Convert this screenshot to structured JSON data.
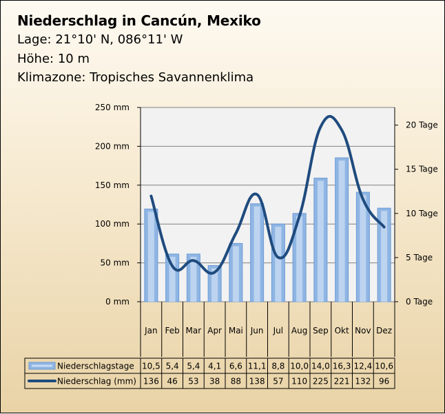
{
  "header": {
    "title": "Niederschlag in Cancún, Mexiko",
    "lage": "Lage: 21°10' N, 086°11' W",
    "hoehe": "Höhe: 10 m",
    "klimazone": "Klimazone: Tropisches Savannenklima"
  },
  "colors": {
    "bar_fill": "#8fb5e3",
    "bar_stroke": "#6d9bd6",
    "bar_highlight": "#c8dcf3",
    "line": "#1f4b7e",
    "plot_bg": "#f2f2f2",
    "gridline": "#808080"
  },
  "chart_data": {
    "type": "bar",
    "categories": [
      "Jan",
      "Feb",
      "Mar",
      "Apr",
      "Mai",
      "Jun",
      "Jul",
      "Aug",
      "Sep",
      "Okt",
      "Nov",
      "Dez"
    ],
    "series": [
      {
        "name": "Niederschlagstage",
        "type": "bar",
        "axis": "right",
        "values": [
          10.5,
          5.4,
          5.4,
          4.1,
          6.6,
          11.1,
          8.8,
          10.0,
          14.0,
          16.3,
          12.4,
          10.6
        ],
        "labels": [
          "10,5",
          "5,4",
          "5,4",
          "4,1",
          "6,6",
          "11,1",
          "8,8",
          "10,0",
          "14,0",
          "16,3",
          "12,4",
          "10,6"
        ]
      },
      {
        "name": "Niederschlag (mm)",
        "type": "line",
        "axis": "left",
        "values": [
          136,
          46,
          53,
          38,
          88,
          138,
          57,
          110,
          225,
          221,
          132,
          96
        ],
        "labels": [
          "136",
          "46",
          "53",
          "38",
          "88",
          "138",
          "57",
          "110",
          "225",
          "221",
          "132",
          "96"
        ]
      }
    ],
    "y_left": {
      "min": 0,
      "max": 250,
      "ticks": [
        "0 mm",
        "50 mm",
        "100 mm",
        "150 mm",
        "200 mm",
        "250 mm"
      ]
    },
    "y_right": {
      "min": 0,
      "max": 22,
      "ticks": [
        "0 Tage",
        "5 Tage",
        "10 Tage",
        "15 Tage",
        "20 Tage"
      ]
    },
    "grid": true,
    "legend": "table-bottom"
  }
}
